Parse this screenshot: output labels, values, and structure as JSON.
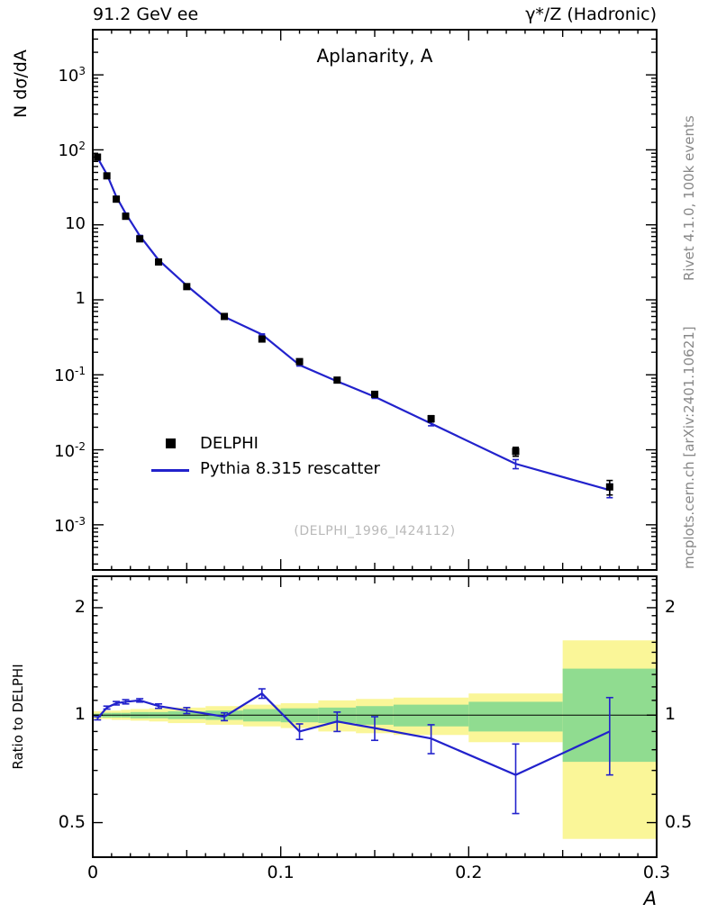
{
  "header": {
    "left": "91.2 GeV ee",
    "right": "γ*/Z (Hadronic)"
  },
  "side_notes": {
    "rivet": "Rivet 4.1.0, 100k events",
    "mcplots": "mcplots.cern.ch [arXiv:2401.10621]"
  },
  "watermark": "(DELPHI_1996_I424112)",
  "legend": [
    {
      "label": "DELPHI",
      "marker": "black-square"
    },
    {
      "label": "Pythia 8.315 rescatter",
      "marker": "blue-line"
    }
  ],
  "colors": {
    "mc_line": "#2222cc",
    "data_marker": "#000000",
    "band_outer": "#faf698",
    "band_inner": "#90dc90",
    "watermark": "#b9b9b9",
    "side_note": "#888888"
  },
  "chart_data": [
    {
      "type": "line",
      "title": "Aplanarity, A",
      "xlabel": "A",
      "ylabel": "N dσ/dA",
      "xlim": [
        0,
        0.3
      ],
      "ylim": [
        0.00025,
        4000
      ],
      "yscale": "log",
      "xticks": [
        0,
        0.1,
        0.2,
        0.3
      ],
      "yticks": [
        1000,
        100,
        10,
        1,
        0.1,
        0.01,
        0.001
      ],
      "x": [
        0.0025,
        0.0075,
        0.0125,
        0.0175,
        0.025,
        0.035,
        0.05,
        0.07,
        0.09,
        0.11,
        0.13,
        0.15,
        0.18,
        0.225,
        0.275
      ],
      "series": [
        {
          "name": "DELPHI",
          "type": "points",
          "values": [
            80,
            45,
            22,
            13,
            6.5,
            3.2,
            1.5,
            0.6,
            0.3,
            0.15,
            0.085,
            0.055,
            0.026,
            0.0095,
            0.0032
          ],
          "errors": [
            2,
            1.5,
            0.8,
            0.5,
            0.25,
            0.12,
            0.06,
            0.025,
            0.013,
            0.008,
            0.005,
            0.004,
            0.0025,
            0.0013,
            0.0007
          ]
        },
        {
          "name": "Pythia 8.315 rescatter",
          "type": "line",
          "values": [
            78.4,
            47.2,
            23.8,
            14.2,
            7.15,
            3.4,
            1.55,
            0.594,
            0.345,
            0.135,
            0.082,
            0.051,
            0.0224,
            0.0065,
            0.0029
          ],
          "errors": [
            0.5,
            0.35,
            0.22,
            0.14,
            0.08,
            0.04,
            0.02,
            0.009,
            0.006,
            0.004,
            0.003,
            0.0025,
            0.0015,
            0.0009,
            0.0006
          ]
        }
      ]
    },
    {
      "type": "ratio",
      "ylabel": "Ratio to DELPHI",
      "ylim": [
        0.4,
        2.45
      ],
      "yscale": "log",
      "yticks": [
        0.5,
        1,
        2
      ],
      "bin_edges": [
        0,
        0.005,
        0.01,
        0.015,
        0.02,
        0.03,
        0.04,
        0.06,
        0.08,
        0.1,
        0.12,
        0.14,
        0.16,
        0.2,
        0.25,
        0.3
      ],
      "x": [
        0.0025,
        0.0075,
        0.0125,
        0.0175,
        0.025,
        0.035,
        0.05,
        0.07,
        0.09,
        0.11,
        0.13,
        0.15,
        0.18,
        0.225,
        0.275
      ],
      "values": [
        0.98,
        1.05,
        1.08,
        1.09,
        1.1,
        1.06,
        1.03,
        0.99,
        1.15,
        0.9,
        0.96,
        0.92,
        0.86,
        0.68,
        0.9
      ],
      "errors": [
        0.01,
        0.01,
        0.012,
        0.015,
        0.012,
        0.015,
        0.02,
        0.025,
        0.035,
        0.045,
        0.06,
        0.07,
        0.08,
        0.15,
        0.22
      ],
      "bands": {
        "outer": [
          [
            0.975,
            1.025
          ],
          [
            0.975,
            1.03
          ],
          [
            0.97,
            1.03
          ],
          [
            0.97,
            1.035
          ],
          [
            0.965,
            1.04
          ],
          [
            0.96,
            1.045
          ],
          [
            0.95,
            1.05
          ],
          [
            0.94,
            1.06
          ],
          [
            0.93,
            1.07
          ],
          [
            0.92,
            1.08
          ],
          [
            0.9,
            1.1
          ],
          [
            0.89,
            1.11
          ],
          [
            0.88,
            1.12
          ],
          [
            0.84,
            1.15
          ],
          [
            0.45,
            1.62
          ]
        ],
        "inner": [
          [
            0.99,
            1.01
          ],
          [
            0.985,
            1.015
          ],
          [
            0.985,
            1.015
          ],
          [
            0.985,
            1.015
          ],
          [
            0.98,
            1.02
          ],
          [
            0.98,
            1.02
          ],
          [
            0.975,
            1.025
          ],
          [
            0.97,
            1.03
          ],
          [
            0.96,
            1.04
          ],
          [
            0.955,
            1.045
          ],
          [
            0.95,
            1.05
          ],
          [
            0.94,
            1.06
          ],
          [
            0.93,
            1.07
          ],
          [
            0.9,
            1.09
          ],
          [
            0.74,
            1.35
          ]
        ]
      }
    }
  ]
}
